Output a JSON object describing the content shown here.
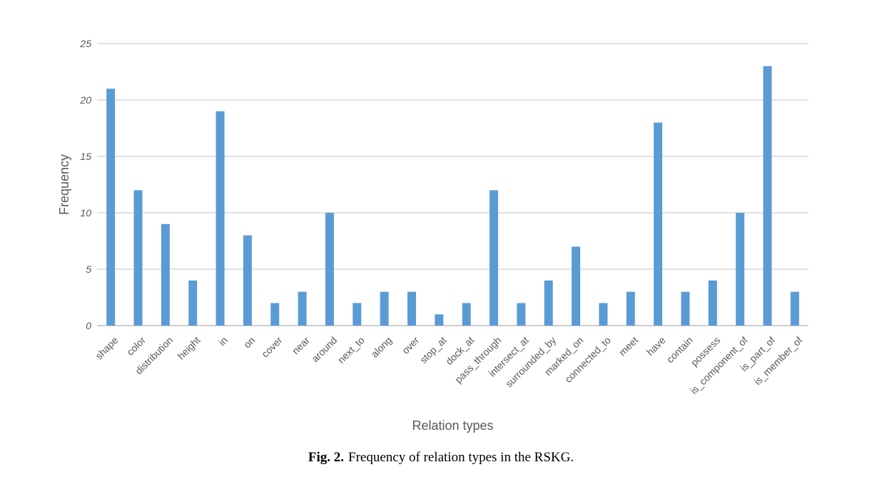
{
  "chart_data": {
    "type": "bar",
    "xlabel": "Relation types",
    "ylabel": "Frequency",
    "ylim": [
      0,
      25
    ],
    "yticks": [
      0,
      5,
      10,
      15,
      20,
      25
    ],
    "grid": true,
    "bar_color": "#5B9BD5",
    "categories": [
      "shape",
      "color",
      "distribution",
      "height",
      "in",
      "on",
      "cover",
      "near",
      "around",
      "next_to",
      "along",
      "over",
      "stop_at",
      "dock_at",
      "pass_through",
      "intersect_at",
      "surrounded_by",
      "marked_on",
      "connected_to",
      "meet",
      "have",
      "contain",
      "possess",
      "is_component_of",
      "is_part_of",
      "is_member_of"
    ],
    "values": [
      21,
      12,
      9,
      4,
      19,
      8,
      2,
      3,
      10,
      2,
      3,
      3,
      1,
      2,
      12,
      2,
      4,
      7,
      2,
      3,
      18,
      3,
      4,
      10,
      23,
      3
    ]
  },
  "caption": {
    "label": "Fig. 2.",
    "text": "Frequency of relation types in the RSKG."
  }
}
